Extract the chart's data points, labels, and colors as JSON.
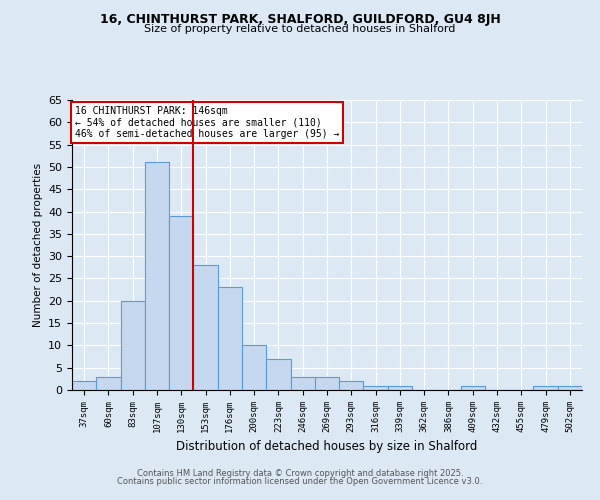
{
  "title1": "16, CHINTHURST PARK, SHALFORD, GUILDFORD, GU4 8JH",
  "title2": "Size of property relative to detached houses in Shalford",
  "xlabel": "Distribution of detached houses by size in Shalford",
  "ylabel": "Number of detached properties",
  "categories": [
    "37sqm",
    "60sqm",
    "83sqm",
    "107sqm",
    "130sqm",
    "153sqm",
    "176sqm",
    "200sqm",
    "223sqm",
    "246sqm",
    "269sqm",
    "293sqm",
    "316sqm",
    "339sqm",
    "362sqm",
    "386sqm",
    "409sqm",
    "432sqm",
    "455sqm",
    "479sqm",
    "502sqm"
  ],
  "values": [
    2,
    3,
    20,
    51,
    39,
    28,
    23,
    10,
    7,
    3,
    3,
    2,
    1,
    1,
    0,
    0,
    1,
    0,
    0,
    1,
    1
  ],
  "bar_color": "#c5d8f0",
  "bar_edge_color": "#5b9bd5",
  "vline_x": 4.5,
  "vline_color": "#cc0000",
  "ylim": [
    0,
    65
  ],
  "yticks": [
    0,
    5,
    10,
    15,
    20,
    25,
    30,
    35,
    40,
    45,
    50,
    55,
    60,
    65
  ],
  "annotation_text": "16 CHINTHURST PARK: 146sqm\n← 54% of detached houses are smaller (110)\n46% of semi-detached houses are larger (95) →",
  "annotation_box_color": "#ffffff",
  "annotation_box_edge": "#cc0000",
  "footer1": "Contains HM Land Registry data © Crown copyright and database right 2025.",
  "footer2": "Contains public sector information licensed under the Open Government Licence v3.0.",
  "bg_color": "#dce9f5"
}
